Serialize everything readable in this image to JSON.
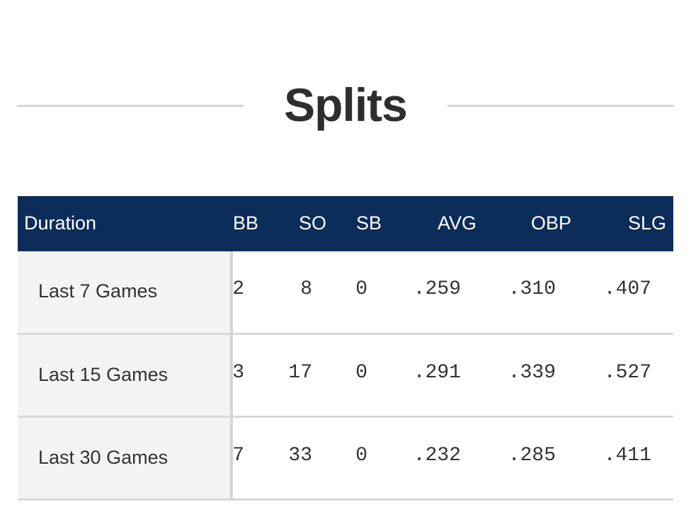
{
  "title": "Splits",
  "table": {
    "headers": {
      "duration": "Duration",
      "bb": "BB",
      "so": "SO",
      "sb": "SB",
      "avg": "AVG",
      "obp": "OBP",
      "slg": "SLG"
    },
    "rows": [
      {
        "duration": "Last 7 Games",
        "bb": "2",
        "so": "8",
        "sb": "0",
        "avg": ".259",
        "obp": ".310",
        "slg": ".407"
      },
      {
        "duration": "Last 15 Games",
        "bb": "3",
        "so": "17",
        "sb": "0",
        "avg": ".291",
        "obp": ".339",
        "slg": ".527"
      },
      {
        "duration": "Last 30 Games",
        "bb": "7",
        "so": "33",
        "sb": "0",
        "avg": ".232",
        "obp": ".285",
        "slg": ".411"
      }
    ]
  },
  "colors": {
    "header_background": "#0c2c5a",
    "label_column_background": "#f4f4f4",
    "rule": "#d6d6d6"
  }
}
